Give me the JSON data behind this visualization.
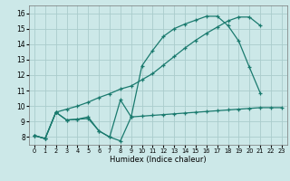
{
  "title": "",
  "xlabel": "Humidex (Indice chaleur)",
  "bg_color": "#cce8e8",
  "grid_color": "#aacccc",
  "line_color": "#1a7a6e",
  "xlim": [
    -0.5,
    23.5
  ],
  "ylim": [
    7.5,
    16.5
  ],
  "xticks": [
    0,
    1,
    2,
    3,
    4,
    5,
    6,
    7,
    8,
    9,
    10,
    11,
    12,
    13,
    14,
    15,
    16,
    17,
    18,
    19,
    20,
    21,
    22,
    23
  ],
  "yticks": [
    8,
    9,
    10,
    11,
    12,
    13,
    14,
    15,
    16
  ],
  "line1_x": [
    0,
    1,
    2,
    3,
    4,
    5,
    6,
    7,
    8,
    9,
    10,
    11,
    12,
    13,
    14,
    15,
    16,
    17,
    18,
    19,
    20,
    21,
    22,
    23
  ],
  "line1_y": [
    8.1,
    7.9,
    9.6,
    9.1,
    9.15,
    9.2,
    8.4,
    8.0,
    7.75,
    9.3,
    9.35,
    9.4,
    9.45,
    9.5,
    9.55,
    9.6,
    9.65,
    9.7,
    9.75,
    9.8,
    9.85,
    9.9,
    9.9,
    9.9
  ],
  "line2_x": [
    0,
    1,
    2,
    3,
    4,
    5,
    6,
    7,
    8,
    9,
    10,
    11,
    12,
    13,
    14,
    15,
    16,
    17,
    18,
    19,
    20,
    21,
    22,
    23
  ],
  "line2_y": [
    8.1,
    7.9,
    9.6,
    9.1,
    9.15,
    9.3,
    8.4,
    8.0,
    10.4,
    9.3,
    12.6,
    13.6,
    14.5,
    15.0,
    15.3,
    15.55,
    15.8,
    15.8,
    15.2,
    14.2,
    12.5,
    10.85,
    null,
    null
  ],
  "line3_x": [
    0,
    1,
    2,
    3,
    4,
    5,
    6,
    7,
    8,
    9,
    10,
    11,
    12,
    13,
    14,
    15,
    16,
    17,
    18,
    19,
    20,
    21,
    22,
    23
  ],
  "line3_y": [
    8.1,
    7.9,
    9.6,
    9.8,
    10.0,
    10.25,
    10.55,
    10.8,
    11.1,
    11.3,
    11.7,
    12.1,
    12.65,
    13.2,
    13.75,
    14.25,
    14.7,
    15.1,
    15.5,
    15.75,
    15.75,
    15.2,
    null,
    null
  ]
}
